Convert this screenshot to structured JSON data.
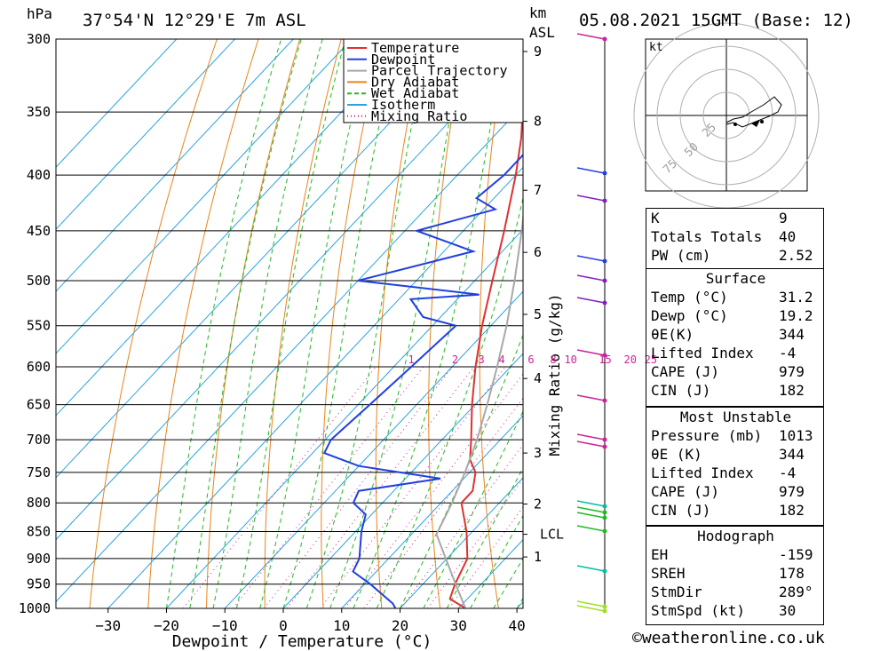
{
  "header": {
    "hpa_unit": "hPa",
    "location": "37°54'N 12°29'E 7m ASL",
    "km_unit": "km",
    "asl_unit": "ASL",
    "datetime": "05.08.2021 15GMT (Base: 12)"
  },
  "chart_data": {
    "type": "skew-t",
    "xlabel": "Dewpoint / Temperature (°C)",
    "ylabel_left": "hPa",
    "ylabel_right": "Mixing Ratio (g/kg)",
    "x_ticks": [
      "-30",
      "-20",
      "-10",
      "0",
      "10",
      "20",
      "30",
      "40"
    ],
    "pressure_ticks": [
      "300",
      "350",
      "400",
      "450",
      "500",
      "550",
      "600",
      "650",
      "700",
      "750",
      "800",
      "850",
      "900",
      "950",
      "1000"
    ],
    "km_ticks": [
      "9",
      "8",
      "7",
      "6",
      "5",
      "4",
      "3",
      "2",
      "LCL",
      "1"
    ],
    "mixing_ratio_labels": [
      "1",
      "2",
      "3",
      "4",
      "6",
      "8",
      "10",
      "15",
      "20",
      "25"
    ],
    "legend": [
      "Temperature",
      "Dewpoint",
      "Parcel Trajectory",
      "Dry Adiabat",
      "Wet Adiabat",
      "Isotherm",
      "Mixing Ratio"
    ],
    "series": [
      {
        "name": "Temperature",
        "color": "#e03030",
        "points": [
          [
            1000,
            31.2
          ],
          [
            980,
            27
          ],
          [
            950,
            25.5
          ],
          [
            900,
            23.5
          ],
          [
            850,
            19
          ],
          [
            800,
            13.5
          ],
          [
            780,
            13.5
          ],
          [
            750,
            11
          ],
          [
            730,
            8
          ],
          [
            700,
            5
          ],
          [
            650,
            -0.5
          ],
          [
            600,
            -6
          ],
          [
            550,
            -11.5
          ],
          [
            500,
            -17
          ],
          [
            450,
            -23
          ],
          [
            400,
            -30
          ],
          [
            370,
            -35
          ],
          [
            350,
            -39
          ],
          [
            320,
            -43
          ],
          [
            300,
            -46
          ]
        ]
      },
      {
        "name": "Dewpoint",
        "color": "#2040e0",
        "points": [
          [
            1000,
            19.2
          ],
          [
            990,
            18
          ],
          [
            950,
            11
          ],
          [
            935,
            8
          ],
          [
            925,
            6
          ],
          [
            900,
            5
          ],
          [
            850,
            1
          ],
          [
            820,
            -1
          ],
          [
            800,
            -5
          ],
          [
            780,
            -6
          ],
          [
            760,
            6
          ],
          [
            740,
            -10
          ],
          [
            720,
            -18
          ],
          [
            700,
            -19
          ],
          [
            650,
            -18
          ],
          [
            600,
            -17
          ],
          [
            550,
            -16
          ],
          [
            540,
            -23
          ],
          [
            520,
            -28
          ],
          [
            515,
            -17
          ],
          [
            500,
            -40
          ],
          [
            470,
            -25
          ],
          [
            450,
            -38
          ],
          [
            430,
            -28
          ],
          [
            420,
            -33
          ],
          [
            400,
            -32
          ],
          [
            380,
            -32
          ],
          [
            360,
            -35
          ],
          [
            330,
            -45
          ],
          [
            320,
            -55
          ],
          [
            310,
            -49
          ],
          [
            300,
            -51
          ]
        ]
      },
      {
        "name": "Parcel Trajectory",
        "color": "#a8a8a8",
        "points": [
          [
            1000,
            31.2
          ],
          [
            950,
            25.6
          ],
          [
            900,
            19.8
          ],
          [
            855,
            14.3
          ],
          [
            800,
            11.9
          ],
          [
            750,
            9.2
          ],
          [
            700,
            6
          ],
          [
            650,
            2.1
          ],
          [
            600,
            -2.3
          ],
          [
            550,
            -7.3
          ],
          [
            500,
            -13.2
          ],
          [
            450,
            -20
          ],
          [
            400,
            -27.9
          ],
          [
            350,
            -37.3
          ],
          [
            300,
            -48.4
          ]
        ]
      }
    ],
    "wind_profile_km": [
      "9",
      "8",
      "7",
      "6",
      "5",
      "4",
      "3",
      "2",
      "1",
      "0"
    ],
    "hodograph": {
      "unit": "kt",
      "rings": [
        "25",
        "50",
        "75"
      ]
    }
  },
  "indices": [
    {
      "label": "K",
      "value": "9"
    },
    {
      "label": "Totals Totals",
      "value": "40"
    },
    {
      "label": "PW (cm)",
      "value": "2.52"
    }
  ],
  "surface": {
    "title": "Surface",
    "rows": [
      {
        "label": "Temp (°C)",
        "value": "31.2"
      },
      {
        "label": "Dewp (°C)",
        "value": "19.2"
      },
      {
        "label": "θE(K)",
        "value": "344"
      },
      {
        "label": "Lifted Index",
        "value": "-4"
      },
      {
        "label": "CAPE (J)",
        "value": "979"
      },
      {
        "label": "CIN (J)",
        "value": "182"
      }
    ]
  },
  "most_unstable": {
    "title": "Most Unstable",
    "rows": [
      {
        "label": "Pressure (mb)",
        "value": "1013"
      },
      {
        "label": "θE (K)",
        "value": "344"
      },
      {
        "label": "Lifted Index",
        "value": "-4"
      },
      {
        "label": "CAPE (J)",
        "value": "979"
      },
      {
        "label": "CIN (J)",
        "value": "182"
      }
    ]
  },
  "hodograph_table": {
    "title": "Hodograph",
    "rows": [
      {
        "label": "EH",
        "value": "-159"
      },
      {
        "label": "SREH",
        "value": "178"
      },
      {
        "label": "StmDir",
        "value": "289°"
      },
      {
        "label": "StmSpd (kt)",
        "value": "30"
      }
    ]
  },
  "footer": {
    "credit": "©weatheronline.co.uk"
  }
}
